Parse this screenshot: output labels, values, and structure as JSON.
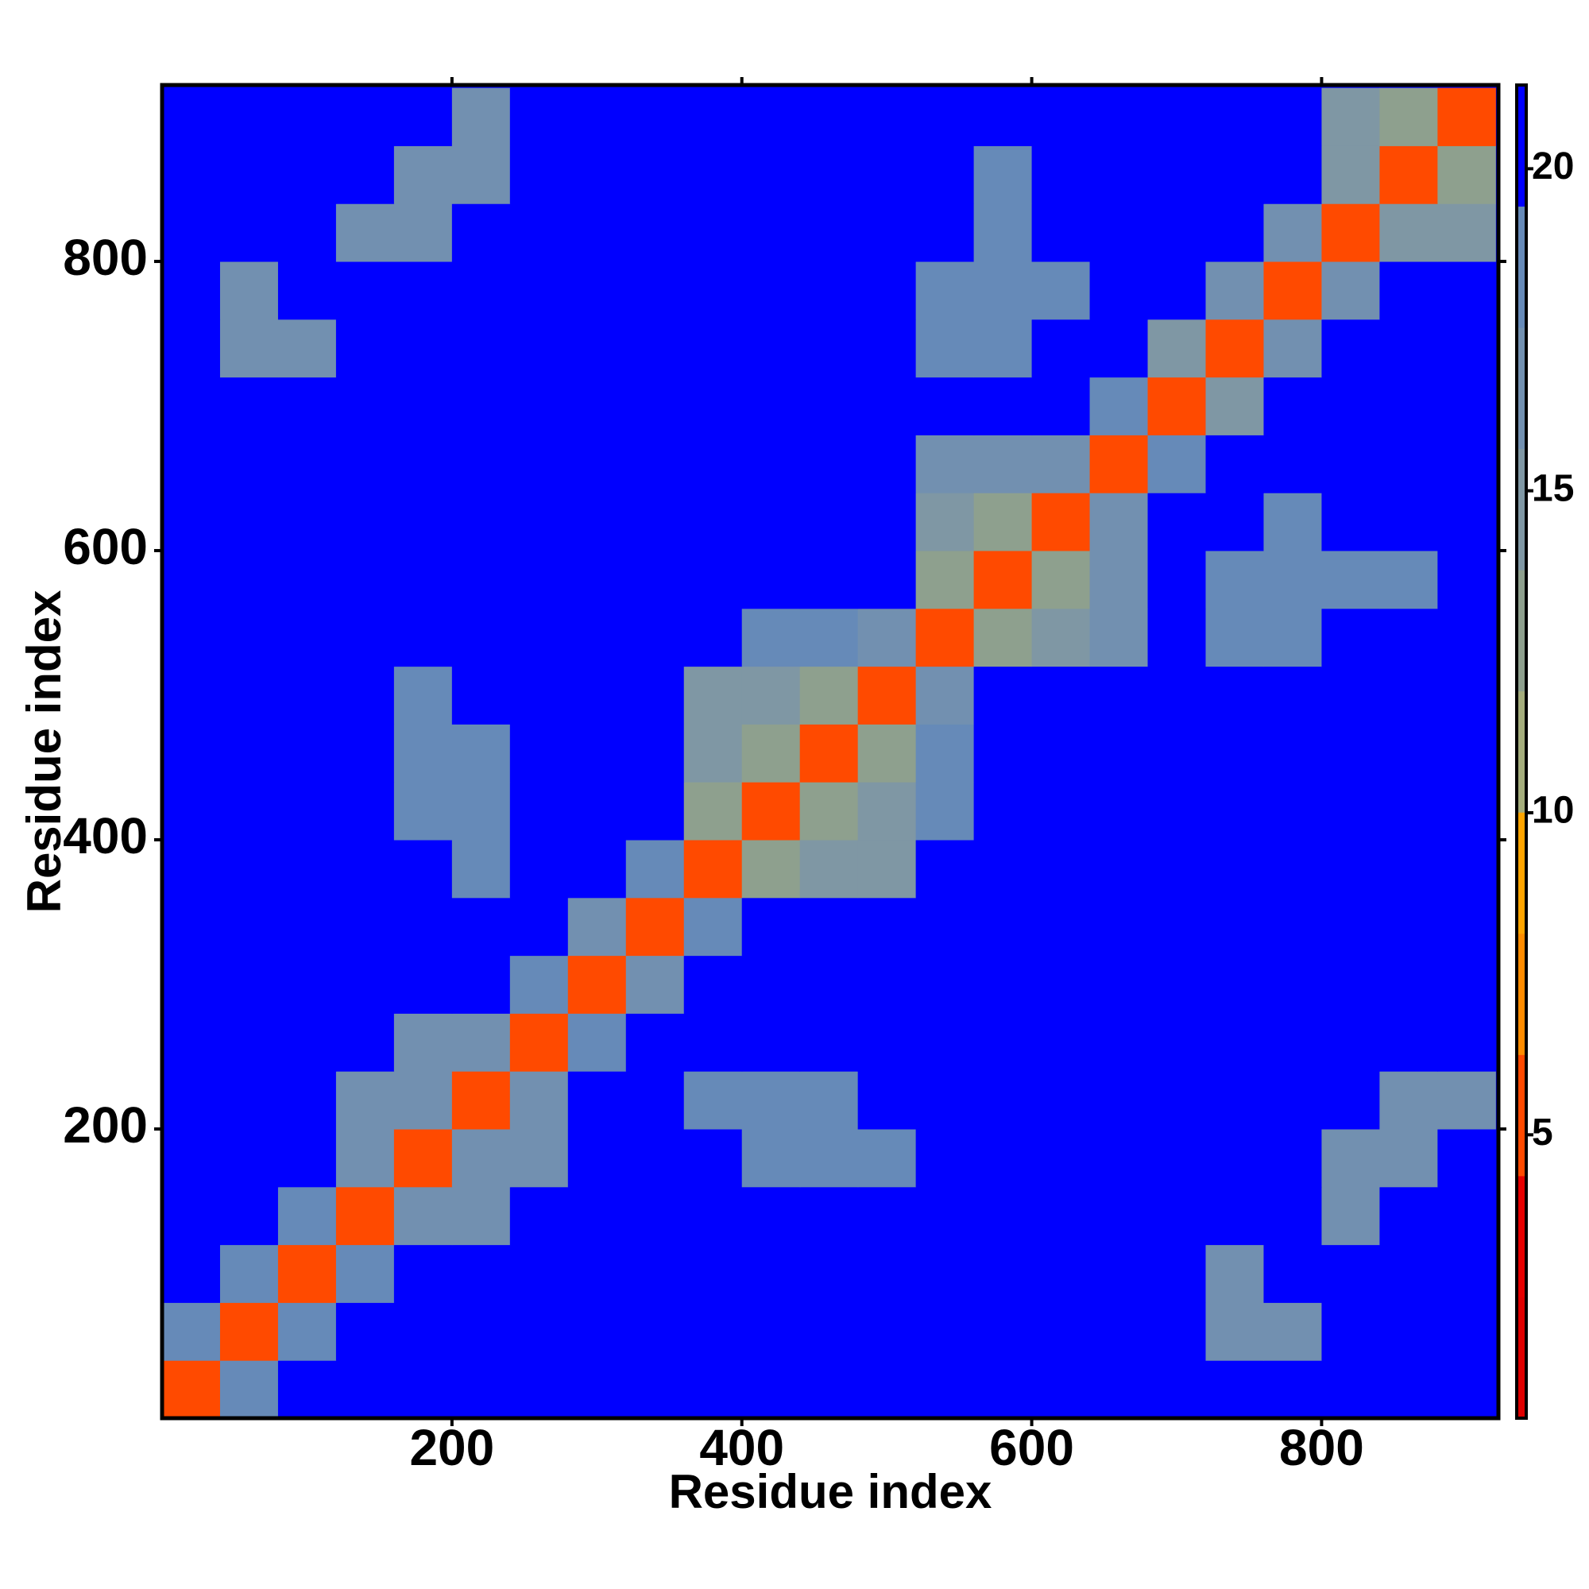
{
  "chart_data": {
    "type": "heatmap",
    "x_label": "Residue index",
    "y_label": "Residue index",
    "x_bins": [
      0,
      40,
      80,
      120,
      160,
      200,
      240,
      280,
      320,
      360,
      400,
      440,
      480,
      520,
      560,
      600,
      640,
      680,
      720,
      760,
      800,
      840,
      880,
      920
    ],
    "y_bins": [
      0,
      40,
      80,
      120,
      160,
      200,
      240,
      280,
      320,
      360,
      400,
      440,
      480,
      520,
      560,
      600,
      640,
      680,
      720,
      760,
      800,
      840,
      880,
      920
    ],
    "z": [
      [
        5,
        19,
        21,
        21,
        21,
        21,
        21,
        21,
        21,
        21,
        21,
        21,
        21,
        21,
        21,
        21,
        21,
        21,
        21,
        21,
        21,
        21,
        21
      ],
      [
        19,
        5,
        19,
        21,
        21,
        21,
        21,
        21,
        21,
        21,
        21,
        21,
        21,
        21,
        21,
        21,
        21,
        21,
        16,
        16,
        21,
        21,
        21
      ],
      [
        21,
        19,
        5,
        19,
        21,
        21,
        21,
        21,
        21,
        21,
        21,
        21,
        21,
        21,
        21,
        21,
        21,
        21,
        16,
        21,
        21,
        21,
        21
      ],
      [
        21,
        21,
        19,
        5,
        16,
        17,
        21,
        21,
        21,
        21,
        21,
        21,
        21,
        21,
        21,
        21,
        21,
        21,
        21,
        21,
        16,
        21,
        21
      ],
      [
        21,
        21,
        21,
        16,
        5,
        16,
        17,
        21,
        21,
        21,
        19,
        19,
        19,
        21,
        21,
        21,
        21,
        21,
        21,
        21,
        16,
        16,
        21
      ],
      [
        21,
        21,
        21,
        17,
        16,
        5,
        16,
        21,
        21,
        19,
        19,
        19,
        21,
        21,
        21,
        21,
        21,
        21,
        21,
        21,
        21,
        16,
        16
      ],
      [
        21,
        21,
        21,
        21,
        17,
        16,
        5,
        18,
        21,
        21,
        21,
        21,
        21,
        21,
        21,
        21,
        21,
        21,
        21,
        21,
        21,
        21,
        21
      ],
      [
        21,
        21,
        21,
        21,
        21,
        21,
        18,
        5,
        16,
        21,
        21,
        21,
        21,
        21,
        21,
        21,
        21,
        21,
        21,
        21,
        21,
        21,
        21
      ],
      [
        21,
        21,
        21,
        21,
        21,
        21,
        21,
        16,
        5,
        18,
        21,
        21,
        21,
        21,
        21,
        21,
        21,
        21,
        21,
        21,
        21,
        21,
        21
      ],
      [
        21,
        21,
        21,
        21,
        21,
        19,
        21,
        21,
        18,
        5,
        13,
        14,
        14,
        21,
        21,
        21,
        21,
        21,
        21,
        21,
        21,
        21,
        21
      ],
      [
        21,
        21,
        21,
        21,
        19,
        19,
        21,
        21,
        21,
        13,
        5,
        13,
        14,
        18,
        21,
        21,
        21,
        21,
        21,
        21,
        21,
        21,
        21
      ],
      [
        21,
        21,
        21,
        21,
        19,
        19,
        21,
        21,
        21,
        14,
        13,
        5,
        13,
        18,
        21,
        21,
        21,
        21,
        21,
        21,
        21,
        21,
        21
      ],
      [
        21,
        21,
        21,
        21,
        19,
        21,
        21,
        21,
        21,
        14,
        14,
        13,
        5,
        17,
        21,
        21,
        21,
        21,
        21,
        21,
        21,
        21,
        21
      ],
      [
        21,
        21,
        21,
        21,
        21,
        21,
        21,
        21,
        21,
        21,
        18,
        18,
        17,
        5,
        13,
        14,
        17,
        21,
        19,
        19,
        21,
        21,
        21
      ],
      [
        21,
        21,
        21,
        21,
        21,
        21,
        21,
        21,
        21,
        21,
        21,
        21,
        21,
        13,
        5,
        13,
        17,
        21,
        19,
        19,
        19,
        19,
        21
      ],
      [
        21,
        21,
        21,
        21,
        21,
        21,
        21,
        21,
        21,
        21,
        21,
        21,
        21,
        14,
        13,
        5,
        16,
        21,
        21,
        19,
        21,
        21,
        21
      ],
      [
        21,
        21,
        21,
        21,
        21,
        21,
        21,
        21,
        21,
        21,
        21,
        21,
        21,
        17,
        17,
        16,
        5,
        18,
        21,
        21,
        21,
        21,
        21
      ],
      [
        21,
        21,
        21,
        21,
        21,
        21,
        21,
        21,
        21,
        21,
        21,
        21,
        21,
        21,
        21,
        21,
        18,
        5,
        15,
        21,
        21,
        21,
        21
      ],
      [
        21,
        16,
        16,
        21,
        21,
        21,
        21,
        21,
        21,
        21,
        21,
        21,
        21,
        19,
        19,
        21,
        21,
        15,
        5,
        16,
        21,
        21,
        21
      ],
      [
        21,
        16,
        21,
        21,
        21,
        21,
        21,
        21,
        21,
        21,
        21,
        21,
        21,
        19,
        19,
        19,
        21,
        21,
        16,
        5,
        16,
        21,
        21
      ],
      [
        21,
        21,
        21,
        16,
        16,
        21,
        21,
        21,
        21,
        21,
        21,
        21,
        21,
        21,
        19,
        21,
        21,
        21,
        21,
        16,
        5,
        14,
        15
      ],
      [
        21,
        21,
        21,
        21,
        16,
        16,
        21,
        21,
        21,
        21,
        21,
        21,
        21,
        21,
        19,
        21,
        21,
        21,
        21,
        21,
        14,
        5,
        13
      ],
      [
        21,
        21,
        21,
        21,
        21,
        16,
        21,
        21,
        21,
        21,
        21,
        21,
        21,
        21,
        21,
        21,
        21,
        21,
        21,
        21,
        15,
        13,
        5
      ]
    ],
    "xlim": [
      0,
      922
    ],
    "ylim": [
      0,
      922
    ],
    "xticks": [
      200,
      400,
      600,
      800
    ],
    "yticks": [
      200,
      400,
      600,
      800
    ],
    "zlim": [
      0.6,
      21.3
    ],
    "zticks": [
      5,
      10,
      15,
      20
    ],
    "colors": [
      "#e00000",
      "#e60000",
      "#ff4a00",
      "#ff8c00",
      "#ffa500",
      "#a4ad7c",
      "#8ea08e",
      "#7f97a4",
      "#7290b0",
      "#668ab8",
      "#0000ff"
    ]
  }
}
